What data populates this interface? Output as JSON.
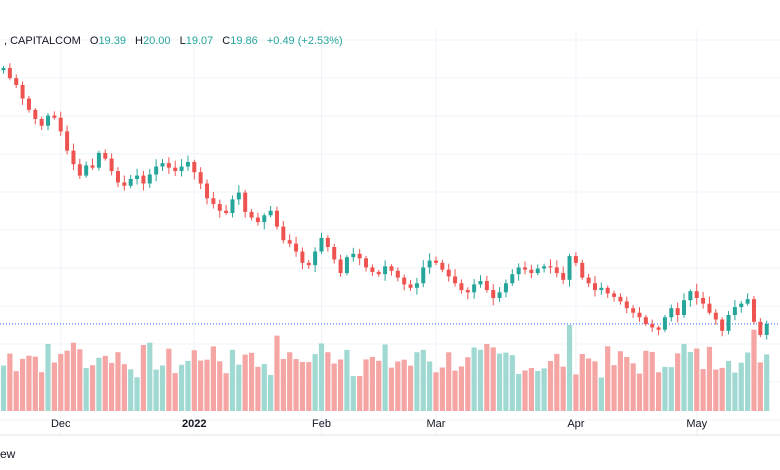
{
  "legend": {
    "source": ", CAPITALCOM",
    "o_label": "O",
    "o_value": "19.39",
    "h_label": "H",
    "h_value": "20.00",
    "l_label": "L",
    "l_value": "19.07",
    "c_label": "C",
    "c_value": "19.86",
    "change": "+0.49 (+2.53%)"
  },
  "footer_text": "ew",
  "colors": {
    "up": "#26a69a",
    "down": "#ef5350",
    "up_volume": "#9fd9d2",
    "down_volume": "#f5a5a3",
    "grid": "#f0f3fa",
    "price_line": "#2962ff"
  },
  "chart_data": {
    "type": "candlestick",
    "title": "",
    "x_ticks": [
      {
        "label": "Dec",
        "index": 9,
        "bold": false
      },
      {
        "label": "2022",
        "index": 30,
        "bold": true
      },
      {
        "label": "Feb",
        "index": 50,
        "bold": false
      },
      {
        "label": "Mar",
        "index": 68,
        "bold": false
      },
      {
        "label": "Apr",
        "index": 90,
        "bold": false
      },
      {
        "label": "May",
        "index": 109,
        "bold": false
      }
    ],
    "y_range": [
      16.5,
      31.5
    ],
    "grid": true,
    "current_price": 19.86,
    "close": [
      31.15,
      30.7,
      30.4,
      29.8,
      29.3,
      28.9,
      28.6,
      29.05,
      28.95,
      28.35,
      27.5,
      26.9,
      26.4,
      26.85,
      26.75,
      27.4,
      27.15,
      26.6,
      26.1,
      25.95,
      26.25,
      26.4,
      26.05,
      26.45,
      26.8,
      26.95,
      26.75,
      26.6,
      26.8,
      27.0,
      26.55,
      26.05,
      25.4,
      25.15,
      24.85,
      24.75,
      25.35,
      25.65,
      24.8,
      24.55,
      24.35,
      24.65,
      24.85,
      24.15,
      23.55,
      23.4,
      23.05,
      22.55,
      22.45,
      23.05,
      23.65,
      23.25,
      22.7,
      22.1,
      22.8,
      22.95,
      22.75,
      22.35,
      22.15,
      22.05,
      22.4,
      22.2,
      21.9,
      21.6,
      21.45,
      21.65,
      22.35,
      22.65,
      22.55,
      22.25,
      21.95,
      21.65,
      21.35,
      21.25,
      21.6,
      21.75,
      21.35,
      21.0,
      21.25,
      21.65,
      22.05,
      22.35,
      22.25,
      22.1,
      22.3,
      22.4,
      22.35,
      22.1,
      21.8,
      22.85,
      22.55,
      21.9,
      21.65,
      21.35,
      21.45,
      21.2,
      21.05,
      20.85,
      20.55,
      20.35,
      20.15,
      19.85,
      19.7,
      19.6,
      20.15,
      20.55,
      20.25,
      20.9,
      21.3,
      21.0,
      20.75,
      20.35,
      20.05,
      19.55,
      20.25,
      20.6,
      20.75,
      20.95,
      19.95,
      19.37,
      19.86
    ]
  }
}
